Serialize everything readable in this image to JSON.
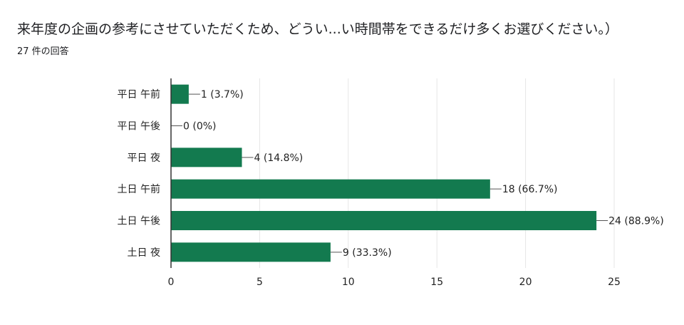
{
  "header": {
    "title": "来年度の企画の参考にさせていただくため、どうい...い時間帯をできるだけ多くお選びください。）",
    "response_count": "27 件の回答"
  },
  "colors": {
    "bar": "#137a4f",
    "gridline": "#e6e6e6",
    "axis": "#333333",
    "leader": "#555555"
  },
  "chart_data": {
    "type": "bar",
    "orientation": "horizontal",
    "title": "",
    "xlabel": "",
    "ylabel": "",
    "categories": [
      "平日 午前",
      "平日 午後",
      "平日 夜",
      "土日 午前",
      "土日 午後",
      "土日 夜"
    ],
    "values": [
      1,
      0,
      4,
      18,
      24,
      9
    ],
    "value_labels": [
      "1 (3.7%)",
      "0 (0%)",
      "4 (14.8%)",
      "18 (66.7%)",
      "24 (88.9%)",
      "9 (33.3%)"
    ],
    "xlim": [
      0,
      25
    ],
    "xticks": [
      0,
      5,
      10,
      15,
      20,
      25
    ],
    "grid": true,
    "legend": "none"
  }
}
